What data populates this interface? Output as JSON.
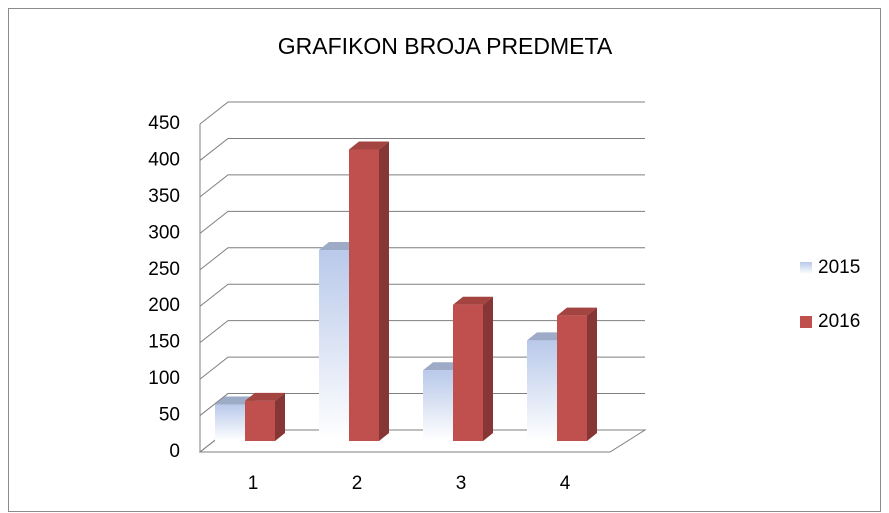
{
  "chart_data": {
    "type": "bar3d",
    "title": "GRAFIKON BROJA PREDMETA",
    "categories": [
      "1",
      "2",
      "3",
      "4"
    ],
    "series": [
      {
        "name": "2015",
        "color": "#b9c9ea",
        "values": [
          50,
          262,
          97,
          138
        ]
      },
      {
        "name": "2016",
        "color": "#c0504d",
        "values": [
          55,
          400,
          187,
          172
        ]
      }
    ],
    "ylim": [
      0,
      450
    ],
    "yticks": [
      0,
      50,
      100,
      150,
      200,
      250,
      300,
      350,
      400,
      450
    ],
    "grid": true,
    "legend": "right"
  }
}
